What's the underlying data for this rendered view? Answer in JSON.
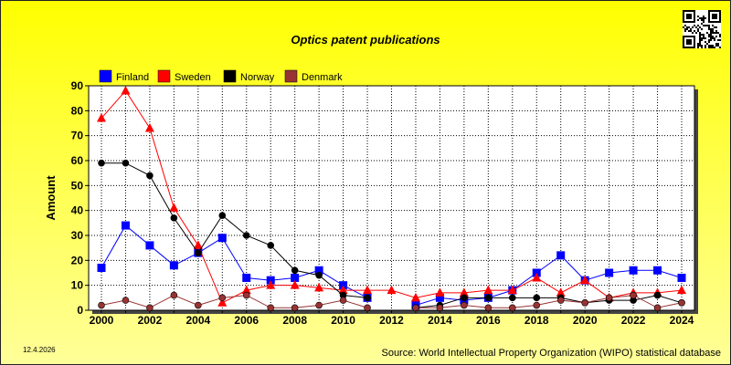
{
  "footer": {
    "date": "12.4.2026",
    "source": "Source: World Intellectual Property Organization (WIPO) statistical database"
  },
  "chart_data": {
    "type": "line",
    "title": "Optics patent publications",
    "xlabel": "",
    "ylabel": "Amount",
    "x": [
      2000,
      2001,
      2002,
      2003,
      2004,
      2005,
      2006,
      2007,
      2008,
      2009,
      2010,
      2011,
      2012,
      2013,
      2014,
      2015,
      2016,
      2017,
      2018,
      2019,
      2020,
      2021,
      2022,
      2023,
      2024
    ],
    "xticks": [
      "2000",
      "2002",
      "2004",
      "2006",
      "2008",
      "2010",
      "2012",
      "2014",
      "2016",
      "2018",
      "2020",
      "2022",
      "2024"
    ],
    "yticks": [
      "0",
      "10",
      "20",
      "30",
      "40",
      "50",
      "60",
      "70",
      "80",
      "90"
    ],
    "xlim": [
      2000,
      2024
    ],
    "ylim": [
      0,
      90
    ],
    "grid": true,
    "legend_position": "top-left",
    "series": [
      {
        "name": "Finland",
        "color": "#0000ff",
        "marker": "square",
        "values": [
          17,
          34,
          26,
          18,
          23,
          29,
          13,
          12,
          13,
          16,
          10,
          5,
          null,
          2,
          5,
          4,
          5,
          8,
          15,
          22,
          12,
          15,
          16,
          16,
          13
        ]
      },
      {
        "name": "Sweden",
        "color": "#ff0000",
        "marker": "triangle",
        "values": [
          77,
          88,
          73,
          41,
          26,
          3,
          8,
          10,
          10,
          9,
          8,
          8,
          8,
          5,
          7,
          7,
          8,
          8,
          13,
          7,
          12,
          5,
          7,
          7,
          8
        ]
      },
      {
        "name": "Norway",
        "color": "#000000",
        "marker": "circle",
        "values": [
          59,
          59,
          54,
          37,
          23,
          38,
          30,
          26,
          16,
          14,
          6,
          5,
          null,
          1,
          2,
          5,
          5,
          5,
          5,
          5,
          3,
          4,
          4,
          6,
          3
        ]
      },
      {
        "name": "Denmark",
        "color": "#993333",
        "marker": "circle",
        "values": [
          2,
          4,
          1,
          6,
          2,
          5,
          6,
          1,
          1,
          2,
          4,
          1,
          null,
          1,
          1,
          2,
          1,
          1,
          2,
          4,
          3,
          5,
          6,
          1,
          3
        ]
      }
    ]
  }
}
